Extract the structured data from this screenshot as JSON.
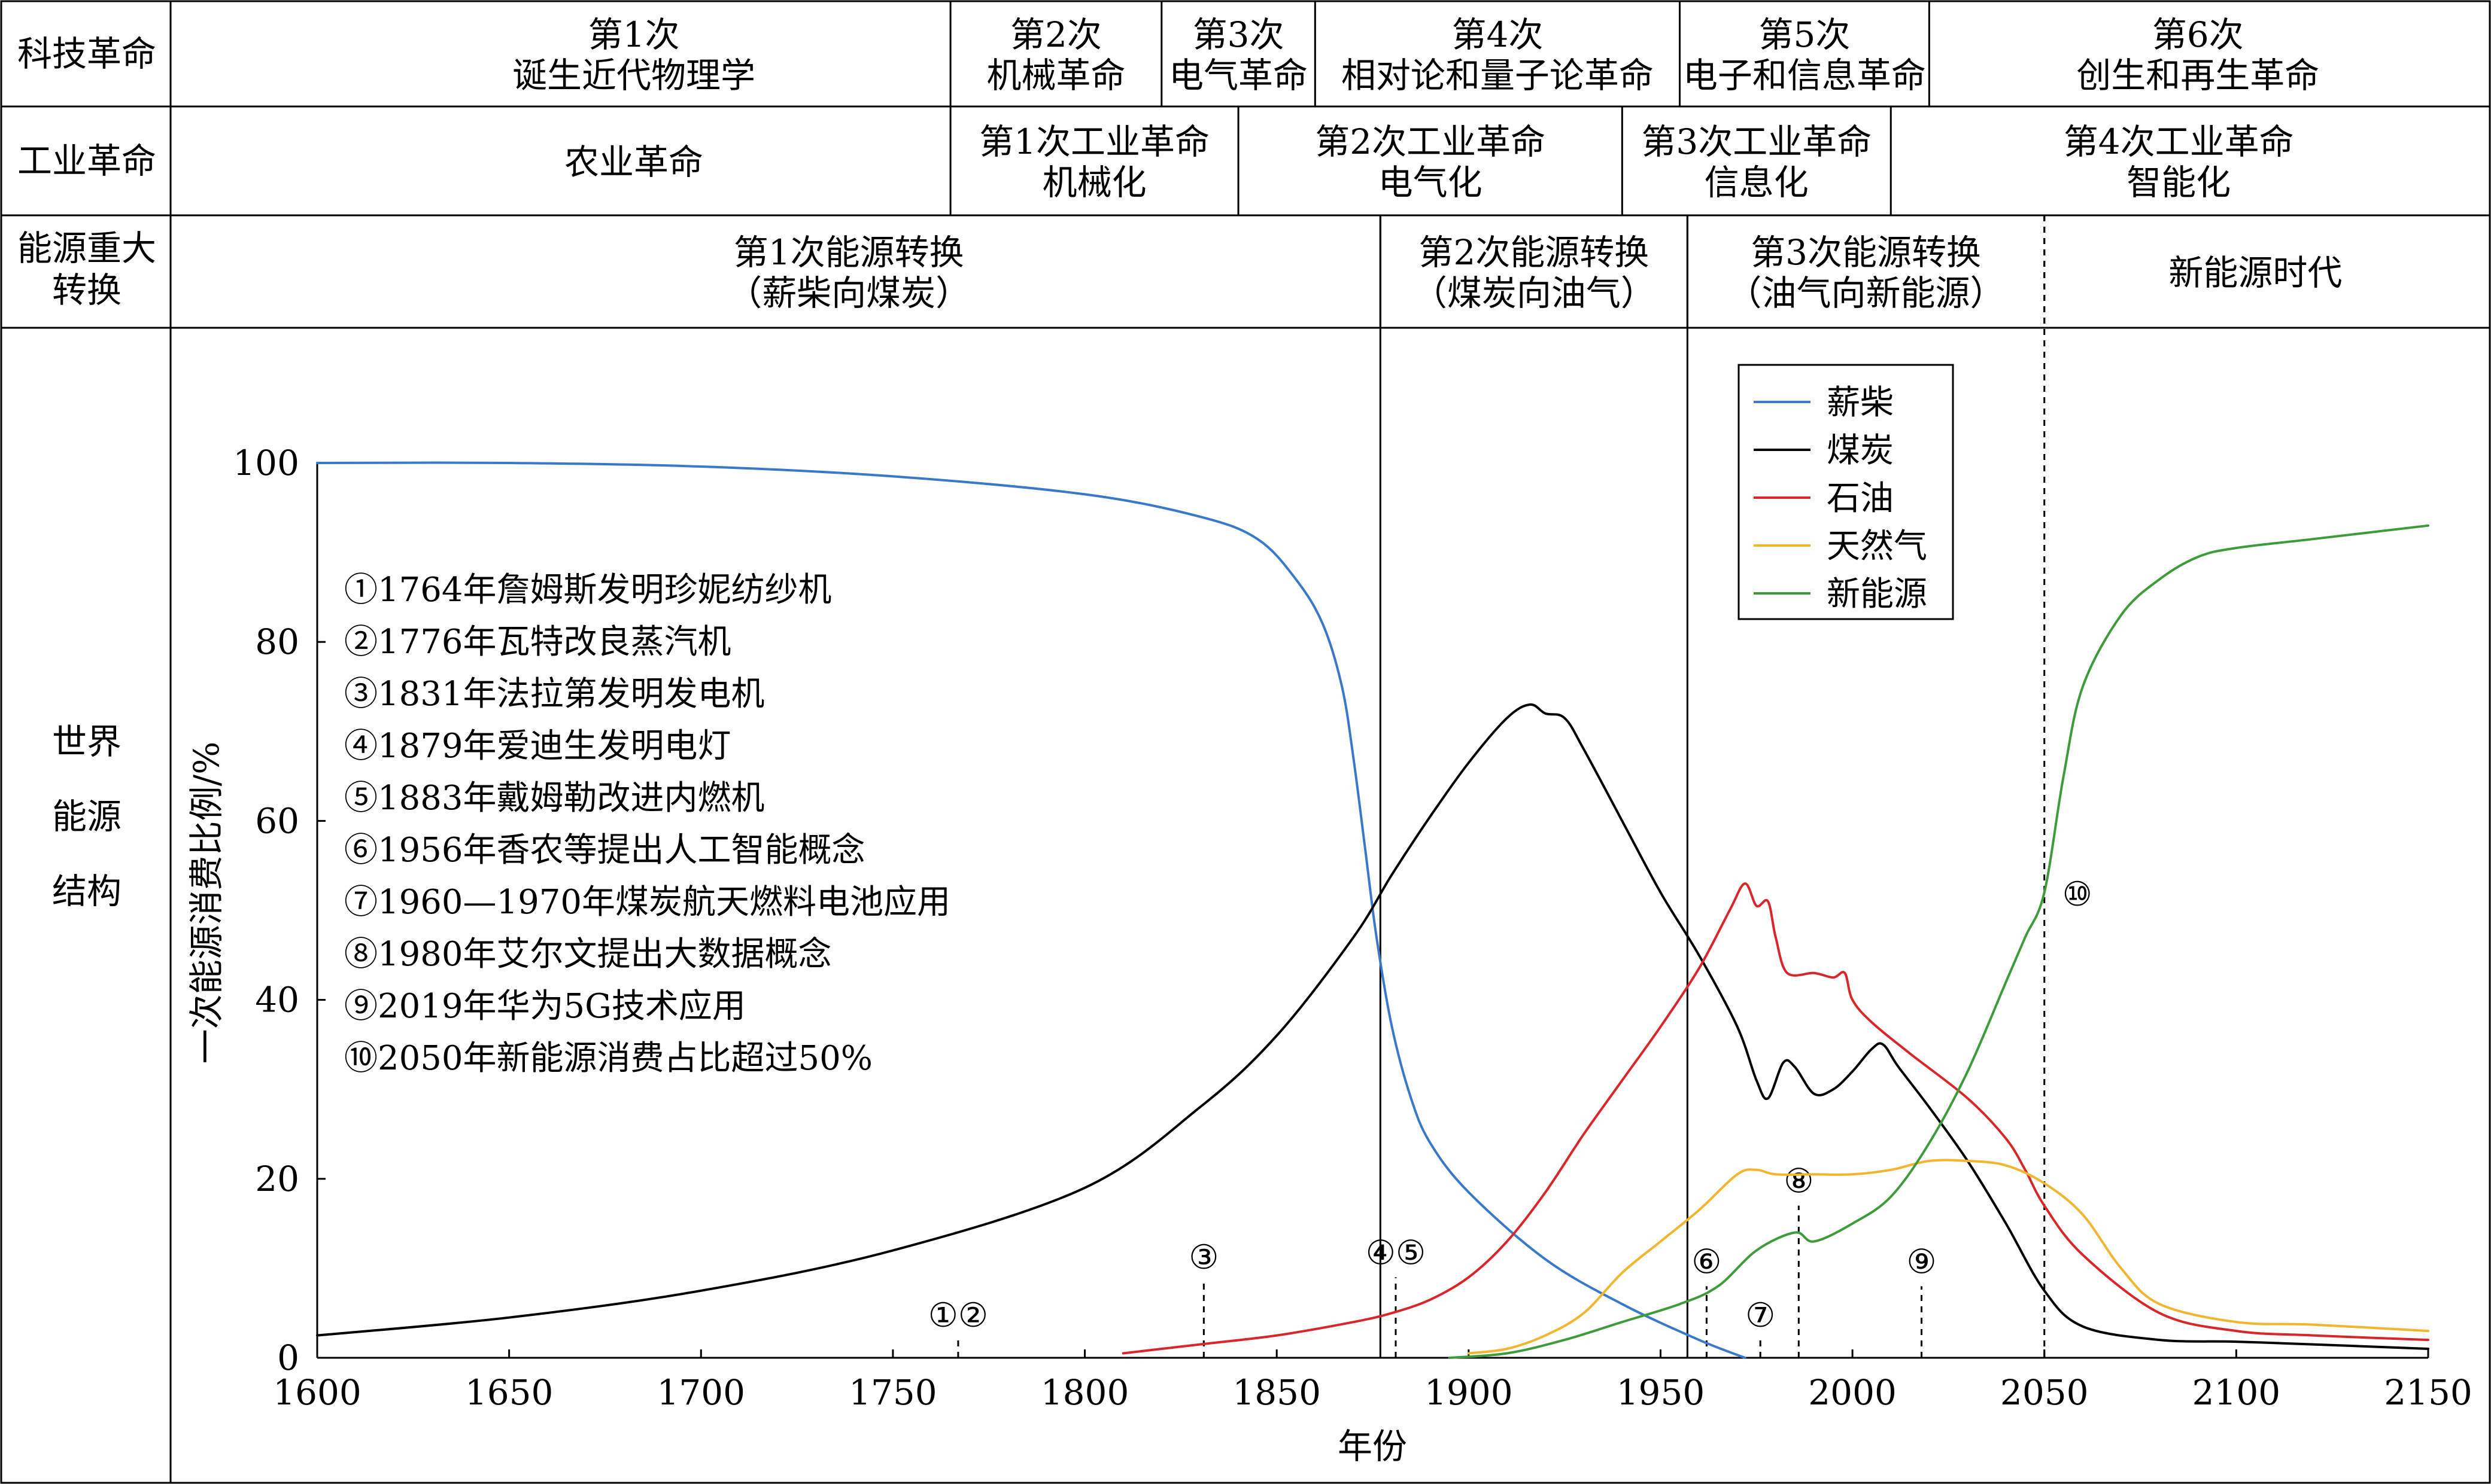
{
  "table": {
    "rows": [
      {
        "label": [
          "科技革命"
        ],
        "cells": [
          {
            "from": 1600,
            "to": 1765,
            "lines": [
              "第1次",
              "诞生近代物理学"
            ]
          },
          {
            "from": 1765,
            "to": 1820,
            "lines": [
              "第2次",
              "机械革命"
            ]
          },
          {
            "from": 1820,
            "to": 1860,
            "lines": [
              "第3次",
              "电气革命"
            ]
          },
          {
            "from": 1860,
            "to": 1955,
            "lines": [
              "第4次",
              "相对论和量子论革命"
            ]
          },
          {
            "from": 1955,
            "to": 2020,
            "lines": [
              "第5次",
              "电子和信息革命"
            ]
          },
          {
            "from": 2020,
            "to": 2160,
            "lines": [
              "第6次",
              "创生和再生革命"
            ]
          }
        ]
      },
      {
        "label": [
          "工业革命"
        ],
        "cells": [
          {
            "from": 1600,
            "to": 1765,
            "lines": [
              "农业革命"
            ]
          },
          {
            "from": 1765,
            "to": 1840,
            "lines": [
              "第1次工业革命",
              "机械化"
            ]
          },
          {
            "from": 1840,
            "to": 1940,
            "lines": [
              "第2次工业革命",
              "电气化"
            ]
          },
          {
            "from": 1940,
            "to": 2010,
            "lines": [
              "第3次工业革命",
              "信息化"
            ]
          },
          {
            "from": 2010,
            "to": 2160,
            "lines": [
              "第4次工业革命",
              "智能化"
            ]
          }
        ]
      },
      {
        "label": [
          "能源重大",
          "转换"
        ],
        "cells": [
          {
            "from": 1600,
            "to": 1877,
            "lines": [
              "第1次能源转换",
              "（薪柴向煤炭）"
            ]
          },
          {
            "from": 1877,
            "to": 1957,
            "lines": [
              "第2次能源转换",
              "（煤炭向油气）"
            ]
          },
          {
            "from": 1957,
            "to": 2050,
            "lines": [
              "第3次能源转换",
              "（油气向新能源）"
            ]
          },
          {
            "from": 2050,
            "to": 2160,
            "lines": [
              "新能源时代"
            ],
            "dashed_left": true
          }
        ]
      }
    ],
    "bottom_label": [
      "世界",
      "能源",
      "结构"
    ]
  },
  "chart_data": {
    "type": "line",
    "xlabel": "年份",
    "ylabel": "一次能源消费比例/%",
    "xlim": [
      1600,
      2150
    ],
    "ylim": [
      0,
      100
    ],
    "xticks": [
      1600,
      1650,
      1700,
      1750,
      1800,
      1850,
      1900,
      1950,
      2000,
      2050,
      2100,
      2150
    ],
    "yticks": [
      0,
      20,
      40,
      60,
      80,
      100
    ],
    "grid": false,
    "legend_position": "top-right",
    "series": [
      {
        "name": "薪柴",
        "color": "#3a78c9",
        "x": [
          1600,
          1650,
          1700,
          1750,
          1800,
          1830,
          1845,
          1855,
          1862,
          1867,
          1870,
          1873,
          1876,
          1880,
          1885,
          1890,
          1900,
          1920,
          1940,
          1960,
          1972
        ],
        "y": [
          100,
          100,
          99.6,
          98.5,
          96.5,
          94,
          91.5,
          87,
          82,
          75,
          67,
          57,
          47,
          37,
          29,
          24,
          18.5,
          11,
          6,
          2,
          0
        ]
      },
      {
        "name": "煤炭",
        "color": "#000000",
        "x": [
          1600,
          1650,
          1700,
          1750,
          1800,
          1830,
          1850,
          1870,
          1880,
          1890,
          1900,
          1910,
          1916,
          1920,
          1925,
          1930,
          1940,
          1950,
          1960,
          1970,
          1975,
          1978,
          1982,
          1985,
          1990,
          1995,
          2000,
          2005,
          2008,
          2012,
          2020,
          2030,
          2040,
          2050,
          2060,
          2080,
          2100,
          2120,
          2150
        ],
        "y": [
          2.5,
          4.5,
          7.5,
          12,
          19,
          28,
          36,
          47,
          54,
          60.5,
          66.5,
          71.5,
          73,
          72,
          71.5,
          68,
          60,
          52,
          45,
          37,
          31,
          29,
          33,
          32.5,
          29.5,
          30,
          32,
          34.5,
          35,
          32.5,
          28,
          22,
          15,
          7.5,
          3.5,
          2,
          1.8,
          1.5,
          1
        ]
      },
      {
        "name": "石油",
        "color": "#d8262b",
        "x": [
          1810,
          1830,
          1850,
          1870,
          1880,
          1890,
          1900,
          1910,
          1920,
          1930,
          1940,
          1950,
          1960,
          1968,
          1972,
          1975,
          1978,
          1980,
          1983,
          1990,
          1995,
          1998,
          2000,
          2005,
          2015,
          2030,
          2040,
          2045,
          2050,
          2060,
          2080,
          2100,
          2120,
          2150
        ],
        "y": [
          0.5,
          1.5,
          2.5,
          4,
          5,
          6.5,
          9,
          13,
          18.5,
          25,
          31,
          37,
          43.5,
          50,
          53,
          50.5,
          51,
          47,
          43,
          43,
          42.5,
          43,
          40,
          37.5,
          34,
          29,
          24.5,
          21,
          17,
          11.5,
          5,
          3,
          2.5,
          2
        ]
      },
      {
        "name": "天然气",
        "color": "#f2b52f",
        "x": [
          1900,
          1910,
          1920,
          1930,
          1940,
          1950,
          1960,
          1970,
          1975,
          1980,
          1990,
          2000,
          2010,
          2020,
          2030,
          2040,
          2050,
          2060,
          2070,
          2080,
          2100,
          2120,
          2150
        ],
        "y": [
          0.5,
          1,
          2.5,
          5,
          9.5,
          13,
          16.5,
          20.5,
          21,
          20.5,
          20.5,
          20.5,
          21,
          22,
          22,
          21.5,
          19.5,
          16,
          10,
          6,
          4,
          3.7,
          3
        ]
      },
      {
        "name": "新能源",
        "color": "#3e9b3a",
        "x": [
          1895,
          1910,
          1925,
          1940,
          1955,
          1965,
          1975,
          1985,
          1990,
          2000,
          2010,
          2020,
          2030,
          2040,
          2045,
          2050,
          2055,
          2060,
          2070,
          2080,
          2090,
          2100,
          2120,
          2150
        ],
        "y": [
          0,
          0.5,
          2,
          4,
          6,
          8,
          12,
          14,
          13,
          15,
          18,
          24,
          32,
          42,
          47,
          52,
          65,
          75,
          83,
          87,
          89.5,
          90.5,
          91.5,
          93
        ]
      }
    ],
    "events": [
      {
        "label": "①1764年詹姆斯发明珍妮纺纱机",
        "marker": "①②",
        "year": 1767,
        "y": 2
      },
      {
        "label": "②1776年瓦特改良蒸汽机"
      },
      {
        "label": "③1831年法拉第发明发电机",
        "marker": "③",
        "year": 1831,
        "y": 8.5
      },
      {
        "label": "④1879年爱迪生发明电灯",
        "marker": "④⑤",
        "year": 1881,
        "y": 9
      },
      {
        "label": "⑤1883年戴姆勒改进内燃机"
      },
      {
        "label": "⑥1956年香农等提出人工智能概念",
        "marker": "⑥",
        "year": 1962,
        "y": 8
      },
      {
        "label": "⑦1960—1970年煤炭航天燃料电池应用",
        "marker": "⑦",
        "year": 1976,
        "y": 2
      },
      {
        "label": "⑧1980年艾尔文提出大数据概念",
        "marker": "⑧",
        "year": 1986,
        "y": 17
      },
      {
        "label": "⑨2019年华为5G技术应用",
        "marker": "⑨",
        "year": 2018,
        "y": 8
      },
      {
        "label": "⑩2050年新能源消费占比超过50%",
        "marker": "⑩",
        "year": 2050,
        "y": 50
      }
    ],
    "reference_lines": [
      1877,
      1957
    ]
  }
}
